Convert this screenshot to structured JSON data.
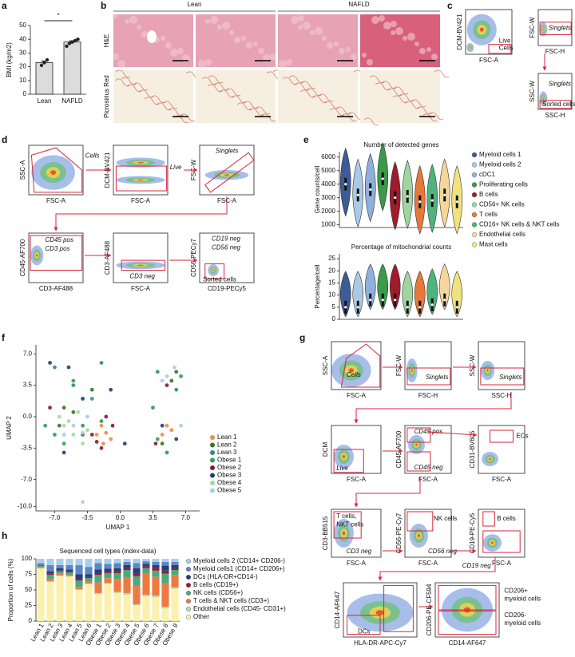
{
  "panel_labels": [
    "a",
    "b",
    "c",
    "d",
    "e",
    "f",
    "g",
    "h"
  ],
  "b": {
    "groups": [
      "Lean",
      "NAFLD"
    ],
    "rows": [
      "H&E",
      "Picrosirius Red"
    ]
  },
  "c": {
    "plots": [
      {
        "ylabel": "DCM-BV421",
        "xlabel": "FSC-A",
        "gates": [
          "Live",
          "Cells"
        ]
      },
      {
        "ylabel": "FSC-W",
        "xlabel": "FSC-H",
        "gates": [
          "Singlets"
        ]
      },
      {
        "ylabel": "SSC-W",
        "xlabel": "SSC-H",
        "gates": [
          "Singlets",
          "Sorted cells"
        ]
      }
    ]
  },
  "d": {
    "plots": [
      {
        "ylabel": "SSC-A",
        "xlabel": "FSC-A",
        "gates": [
          "Cells"
        ]
      },
      {
        "ylabel": "DCM-BV421",
        "xlabel": "FSC-A",
        "gates": [
          "Live"
        ]
      },
      {
        "ylabel": "FSC-W",
        "xlabel": "FSC-A",
        "gates": [
          "Singlets"
        ]
      },
      {
        "ylabel": "CD45-AF700",
        "xlabel": "CD3-AF488",
        "gates": [
          "CD45 pos",
          "CD3 pos"
        ]
      },
      {
        "ylabel": "CD3-AF488",
        "xlabel": "FSC-A",
        "gates": [
          "CD3 neg"
        ]
      },
      {
        "ylabel": "CD56-PECy7",
        "xlabel": "CD19-PECy5",
        "gates": [
          "CD19 neg",
          "CD56 neg",
          "Sorted cells"
        ]
      }
    ]
  },
  "g": {
    "plots": [
      {
        "ylabel": "SSC-A",
        "xlabel": "FSC-A",
        "gates": [
          "Cells"
        ]
      },
      {
        "ylabel": "FSC-W",
        "xlabel": "FSC-H",
        "gates": [
          "Singlets"
        ]
      },
      {
        "ylabel": "SSC-W",
        "xlabel": "SSC-H",
        "gates": [
          "Singlets"
        ]
      },
      {
        "ylabel": "DCM",
        "xlabel": "FSC-A",
        "gates": [
          "Live"
        ]
      },
      {
        "ylabel": "CD45-AF700",
        "xlabel": "FSC-A",
        "gates": [
          "CD45 pos",
          "CD45 neg"
        ]
      },
      {
        "ylabel": "CD31-BV605",
        "xlabel": "FSC-A",
        "gates": [
          "ECs"
        ]
      },
      {
        "ylabel": "CD3-BB515",
        "xlabel": "FSC-A",
        "gates": [
          "T cells,",
          "NKT cells",
          "CD3 neg"
        ]
      },
      {
        "ylabel": "CD56-PE-Cy7",
        "xlabel": "FSC-A",
        "gates": [
          "NK cells",
          "CD56 neg"
        ]
      },
      {
        "ylabel": "CD19-PE-Cy5",
        "xlabel": "FSC-A",
        "gates": [
          "B cells",
          "CD19 neg"
        ]
      },
      {
        "ylabel": "CD14-AF647",
        "xlabel": "HLA-DR-APC-Cy7",
        "gates": [
          "DCs"
        ]
      },
      {
        "ylabel": "CD206-PE-CF594",
        "xlabel": "CD14-AF647",
        "gates": [
          "CD206+",
          "myeloid cells",
          "CD206-",
          "myeloid cells"
        ]
      }
    ]
  },
  "chart_data": [
    {
      "type": "bar",
      "ylabel": "BMI (kg/m2)",
      "categories": [
        "Lean",
        "NAFLD"
      ],
      "values": [
        23,
        38
      ],
      "errors": [
        1.2,
        0.9
      ],
      "points": [
        [
          21,
          23,
          25
        ],
        [
          35,
          37,
          38,
          39,
          40
        ]
      ],
      "significance": "*",
      "color": "#dcdcdc",
      "ylim": [
        0,
        50
      ],
      "yticks": [
        0,
        10,
        20,
        30,
        40,
        50
      ]
    },
    {
      "type": "violin",
      "title": "Number of detected genes",
      "ylabel": "Gene counts/cell",
      "categories": [
        "Myeloid cells 1",
        "Myeloid cells 2",
        "cDC1",
        "Proliferating cells",
        "B cells",
        "CD56+ NK cells",
        "T cells",
        "CD16+ NK cells & NKT cells",
        "Endothelial cells",
        "Mast cells"
      ],
      "colors": [
        "#3d5a99",
        "#a9c9e4",
        "#8fb0dc",
        "#3a9a4a",
        "#a01c2c",
        "#9fd6a0",
        "#e8773a",
        "#4fb37e",
        "#f6d69a",
        "#f2e27d"
      ],
      "values": [
        4000,
        3200,
        3600,
        4400,
        3000,
        3100,
        2700,
        2800,
        3200,
        2700
      ],
      "ylim": [
        800,
        6400
      ],
      "yticks": [
        1000,
        2000,
        3000,
        4000,
        5000,
        6000
      ]
    },
    {
      "type": "violin",
      "title": "Percentage of mitochondrial counts",
      "ylabel": "Percentage/cell",
      "values": [
        5,
        5,
        8,
        8,
        8,
        5,
        5,
        6,
        8,
        5
      ],
      "ylim": [
        0,
        27
      ],
      "yticks": [
        0,
        5,
        10,
        15,
        20,
        25
      ]
    },
    {
      "type": "scatter",
      "xlabel": "UMAP 1",
      "ylabel": "UMAP 2",
      "series": [
        {
          "name": "Lean 1",
          "color": "#f08a4b",
          "x": [
            -1.5,
            -1,
            -2,
            -1.8,
            5,
            5.5,
            4.5,
            -2.5
          ],
          "y": [
            -1.8,
            -2.5,
            -1,
            -3,
            -1,
            -1.5,
            -2,
            -2
          ]
        },
        {
          "name": "Lean 2",
          "color": "#3f6f2a",
          "x": [
            -6,
            -5,
            -4,
            5.5,
            6,
            -3,
            -6.5,
            4.5
          ],
          "y": [
            1,
            0.5,
            -2,
            4,
            5,
            3,
            -1,
            -3
          ]
        },
        {
          "name": "Lean 3",
          "color": "#2e8b8b",
          "x": [
            -7,
            -5,
            4,
            6,
            -4,
            5,
            -2,
            3.5
          ],
          "y": [
            5.5,
            3.5,
            5,
            3,
            -1,
            -4,
            6,
            1
          ]
        },
        {
          "name": "Obese 1",
          "color": "#2e9e5b",
          "x": [
            -8,
            -7,
            -6,
            -3,
            6.5,
            4,
            -5,
            -2
          ],
          "y": [
            -1,
            -2,
            -3,
            2,
            4.5,
            -2.5,
            4,
            -0.5
          ]
        },
        {
          "name": "Obese 2",
          "color": "#8b1a2b",
          "x": [
            -2.5,
            -3,
            -2,
            -0.8,
            5,
            -7.5,
            -1.5,
            3.8
          ],
          "y": [
            -2.8,
            -2,
            -3.5,
            -1,
            3.5,
            1,
            0,
            -3
          ]
        },
        {
          "name": "Obese 3",
          "color": "#1f3d7a",
          "x": [
            -7.5,
            -5.5,
            -1,
            0.5,
            4.5,
            6,
            -4,
            -6
          ],
          "y": [
            6,
            5.5,
            3,
            -3,
            -1,
            -2.5,
            2,
            -4
          ]
        },
        {
          "name": "Obese 4",
          "color": "#a6d9a0",
          "x": [
            -6,
            -5,
            -4.5,
            -5.5,
            -4,
            -3.5,
            -6.5,
            5
          ],
          "y": [
            -1,
            -2,
            0.5,
            -0.5,
            -3,
            -1.5,
            0,
            4.5
          ]
        },
        {
          "name": "Obese 5",
          "color": "#a8cce3",
          "x": [
            -5,
            -4,
            -6,
            5.8,
            4.5,
            6.5,
            -3.5,
            -4
          ],
          "y": [
            -1,
            -1.8,
            -2,
            5.5,
            4,
            -1,
            0,
            -9.5
          ]
        }
      ],
      "xlim": [
        -9,
        8.5
      ],
      "ylim": [
        -10.5,
        8
      ],
      "xticks": [
        {
          "value": -7,
          "label": "-7.0"
        },
        -3.5,
        {
          "value": 0,
          "label": "0.0"
        },
        3.5,
        {
          "value": 7,
          "label": "7.0"
        }
      ],
      "yticks": [
        {
          "value": 7,
          "label": "7.0"
        },
        3.5,
        {
          "value": 0,
          "label": "0.0"
        },
        -3.5,
        {
          "value": -7,
          "label": "-7.0"
        },
        {
          "value": -10,
          "label": "-10.0"
        }
      ]
    },
    {
      "type": "stacked_bar",
      "title": "Sequenced cell types (index-data)",
      "ylabel": "Proportion of cells (%)",
      "categories": [
        "Lean 1",
        "Lean 2",
        "Lean 3",
        "Lean 4",
        "Lean 5",
        "Lean 6",
        "Obese 1",
        "Obese 2",
        "Obese 3",
        "Obese 4",
        "Obese 5",
        "Obese 6",
        "Obese 7",
        "Obese 8",
        "Obese 9"
      ],
      "series": [
        {
          "name": "Myeloid cells 2 (CD14+ CD206-)",
          "color": "#a9cfe8",
          "values": [
            7,
            10,
            10,
            10,
            10,
            13,
            7,
            8,
            7,
            5,
            7,
            4,
            5,
            5,
            5
          ]
        },
        {
          "name": "Myeloid cells1 (CD14+ CD206+)",
          "color": "#5d86c5",
          "values": [
            3,
            10,
            5,
            7,
            15,
            12,
            10,
            8,
            8,
            5,
            8,
            4,
            5,
            6,
            5
          ]
        },
        {
          "name": "DCs (HLA-DR+CD14-)",
          "color": "#263d7c",
          "values": [
            1,
            4,
            4,
            3,
            7,
            4,
            6,
            5,
            5,
            5,
            8,
            4,
            5,
            8,
            5
          ]
        },
        {
          "name": "B cells (CD19+)",
          "color": "#9b1b30",
          "values": [
            0,
            2,
            1,
            2,
            3,
            2,
            3,
            2,
            3,
            3,
            5,
            3,
            4,
            5,
            3
          ]
        },
        {
          "name": "NK cells (CD56+)",
          "color": "#4caa7a",
          "values": [
            2,
            7,
            4,
            4,
            10,
            6,
            12,
            8,
            10,
            12,
            15,
            8,
            10,
            15,
            8
          ]
        },
        {
          "name": "T cells & NKT cells (CD3+)",
          "color": "#ee7a40",
          "values": [
            2,
            3,
            3,
            2,
            4,
            3,
            17,
            8,
            20,
            25,
            30,
            35,
            30,
            38,
            20
          ]
        },
        {
          "name": "Endothelial cells (CD45- CD31+)",
          "color": "#b5e0ae",
          "values": [
            0,
            1,
            0,
            0,
            1,
            0,
            2,
            1,
            2,
            3,
            2,
            2,
            3,
            3,
            2
          ]
        },
        {
          "name": "Other",
          "color": "#fbf1ad",
          "values": [
            85,
            63,
            73,
            72,
            50,
            60,
            43,
            60,
            45,
            42,
            25,
            40,
            38,
            20,
            52
          ]
        }
      ],
      "ylim": [
        0,
        100
      ],
      "yticks": [
        0,
        25,
        50,
        75,
        100
      ]
    }
  ]
}
